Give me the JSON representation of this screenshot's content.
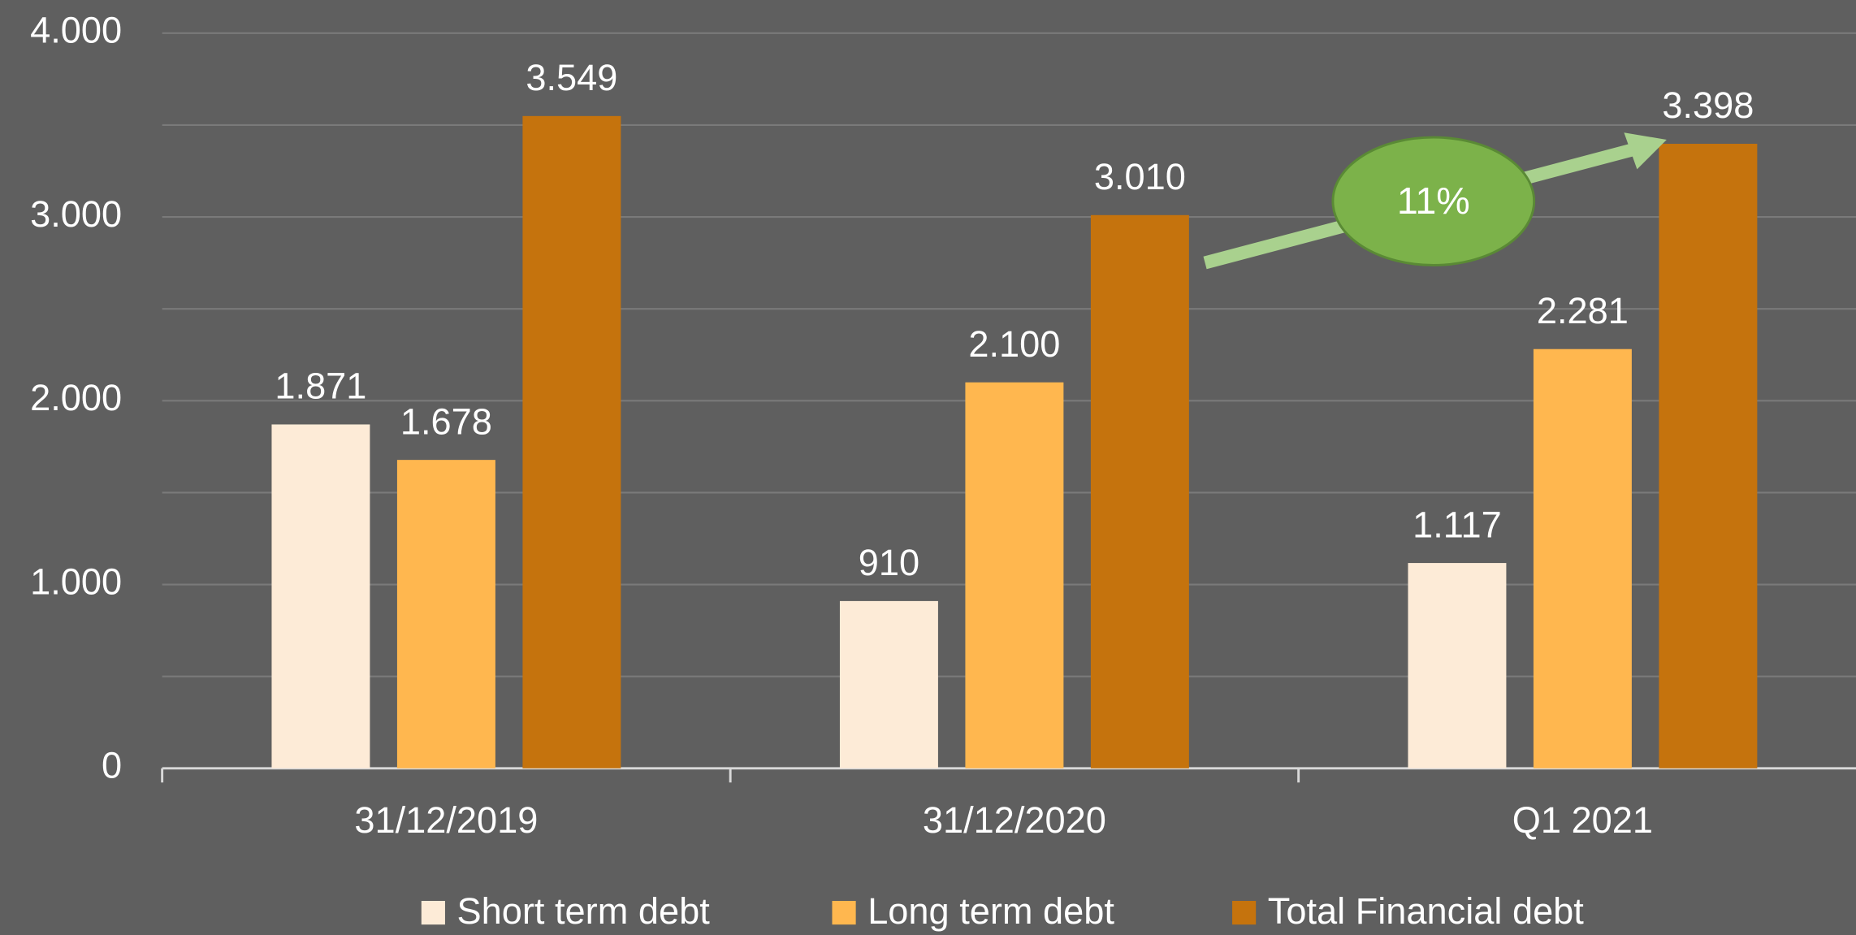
{
  "chart_data": {
    "type": "bar",
    "categories": [
      "31/12/2019",
      "31/12/2020",
      "Q1 2021"
    ],
    "series": [
      {
        "name": "Short term debt",
        "color": "#fdebd7",
        "values": [
          1871,
          910,
          1117
        ],
        "value_labels": [
          "1.871",
          "910",
          "1.117"
        ]
      },
      {
        "name": "Long term debt",
        "color": "#ffb74f",
        "values": [
          1678,
          2100,
          2281
        ],
        "value_labels": [
          "1.678",
          "2.100",
          "2.281"
        ]
      },
      {
        "name": "Total Financial debt",
        "color": "#c5730d",
        "values": [
          3549,
          3010,
          3398
        ],
        "value_labels": [
          "3.549",
          "3.010",
          "3.398"
        ]
      }
    ],
    "ylim": [
      0,
      4000
    ],
    "yticks": [
      0,
      {
        "value": 1000,
        "label": "1.000"
      },
      {
        "value": 2000,
        "label": "2.000"
      },
      {
        "value": 3000,
        "label": "3.000"
      },
      {
        "value": 4000,
        "label": "4.000"
      }
    ],
    "minor_yticks": [
      500,
      1500,
      2500,
      3500
    ],
    "grid": true,
    "legend": "bottom",
    "annotations": [
      {
        "text": "11%"
      }
    ]
  }
}
